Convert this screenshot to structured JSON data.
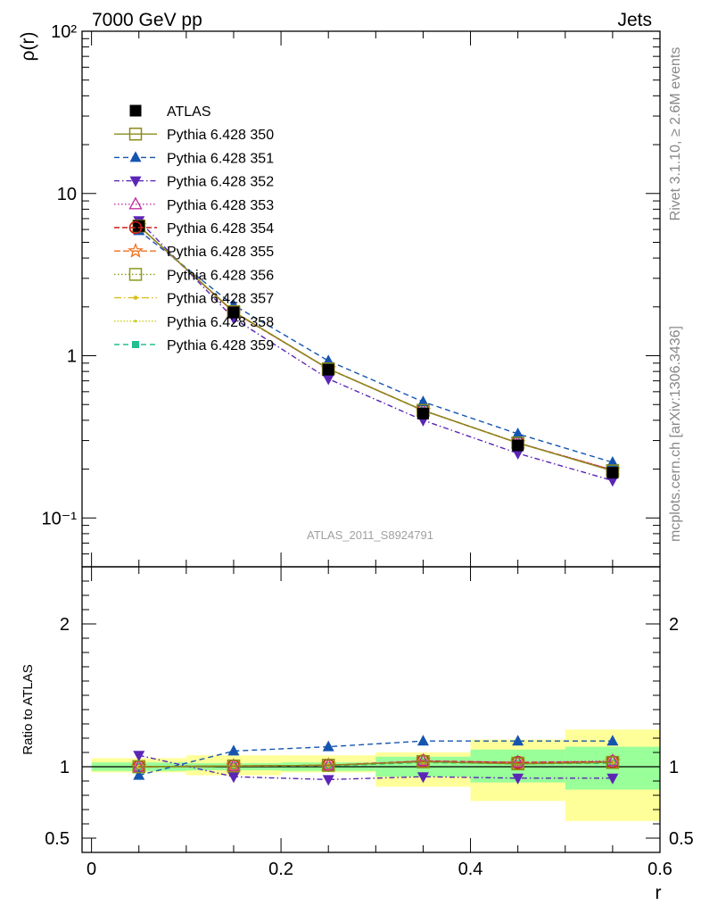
{
  "header": {
    "left_title": "7000 GeV pp",
    "right_title": "Jets"
  },
  "side_labels": {
    "rivet": "Rivet 3.1.10, ≥ 2.6M events",
    "mcplots": "mcplots.cern.ch [arXiv:1306.3436]"
  },
  "watermark": "ATLAS_2011_S8924791",
  "chart_data": [
    {
      "panel": "main",
      "type": "line",
      "ylabel": "ρ(r)",
      "yscale": "log",
      "ylim": [
        0.05,
        100
      ],
      "xlim": [
        -0.01,
        0.6
      ],
      "y_tick_labels": [
        "10⁻¹",
        "1",
        "10",
        "10²"
      ],
      "legend_placement": "upper-left",
      "x": [
        0.05,
        0.15,
        0.25,
        0.35,
        0.45,
        0.55
      ],
      "series": [
        {
          "name": "ATLAS",
          "color": "#000000",
          "marker": "square-filled",
          "dash": "none",
          "values": [
            6.3,
            1.85,
            0.82,
            0.44,
            0.28,
            0.19
          ]
        },
        {
          "name": "Pythia 6.428 350",
          "color": "#8b8b1a",
          "marker": "square-open",
          "dash": "solid",
          "values": [
            6.3,
            1.87,
            0.83,
            0.46,
            0.29,
            0.195
          ]
        },
        {
          "name": "Pythia 6.428 351",
          "color": "#1555b0",
          "marker": "triangle-up-filled",
          "dash": "6,4",
          "values": [
            5.9,
            2.05,
            0.93,
            0.52,
            0.33,
            0.22
          ]
        },
        {
          "name": "Pythia 6.428 352",
          "color": "#5b25b5",
          "marker": "triangle-down-filled",
          "dash": "6,3,1.5,3",
          "values": [
            6.8,
            1.7,
            0.72,
            0.4,
            0.25,
            0.17
          ]
        },
        {
          "name": "Pythia 6.428 353",
          "color": "#c030a0",
          "marker": "triangle-up-open",
          "dash": "1.5,2.5",
          "values": [
            6.3,
            1.86,
            0.83,
            0.46,
            0.29,
            0.198
          ]
        },
        {
          "name": "Pythia 6.428 354",
          "color": "#d01a1a",
          "marker": "circle-open",
          "dash": "6,3",
          "values": [
            6.3,
            1.86,
            0.83,
            0.46,
            0.29,
            0.197
          ]
        },
        {
          "name": "Pythia 6.428 355",
          "color": "#f07020",
          "marker": "star-open",
          "dash": "7,3",
          "values": [
            6.3,
            1.86,
            0.83,
            0.46,
            0.29,
            0.197
          ]
        },
        {
          "name": "Pythia 6.428 356",
          "color": "#8a9a1a",
          "marker": "square-open",
          "dash": "1.5,2.5",
          "values": [
            6.3,
            1.86,
            0.83,
            0.46,
            0.29,
            0.196
          ]
        },
        {
          "name": "Pythia 6.428 357",
          "color": "#d8c020",
          "marker": "dot",
          "dash": "8,3,1.5,3",
          "values": [
            6.3,
            1.86,
            0.83,
            0.46,
            0.29,
            0.196
          ]
        },
        {
          "name": "Pythia 6.428 358",
          "color": "#c8d020",
          "marker": "dot-small",
          "dash": "1.5,2",
          "values": [
            6.3,
            1.86,
            0.83,
            0.46,
            0.29,
            0.196
          ]
        },
        {
          "name": "Pythia 6.428 359",
          "color": "#20c090",
          "marker": "square-filled-small",
          "dash": "6,4",
          "values": [
            6.3,
            1.86,
            0.83,
            0.46,
            0.29,
            0.196
          ]
        }
      ]
    },
    {
      "panel": "ratio",
      "type": "line",
      "ylabel": "Ratio to ATLAS",
      "xlabel": "r",
      "ylim": [
        0.4,
        2.4
      ],
      "xlim": [
        -0.01,
        0.6
      ],
      "y_ticks": [
        0.5,
        1,
        2
      ],
      "y_tick_labels": [
        "0.5",
        "1",
        "2"
      ],
      "x_ticks": [
        0,
        0.2,
        0.4,
        0.6
      ],
      "x_tick_labels": [
        "0",
        "0.2",
        "0.4",
        "0.6"
      ],
      "bands": [
        {
          "x": [
            0.0,
            0.1
          ],
          "inner": [
            0.97,
            1.03
          ],
          "outer": [
            0.96,
            1.06
          ]
        },
        {
          "x": [
            0.1,
            0.2
          ],
          "inner": [
            0.975,
            1.025
          ],
          "outer": [
            0.94,
            1.08
          ]
        },
        {
          "x": [
            0.2,
            0.3
          ],
          "inner": [
            0.97,
            1.03
          ],
          "outer": [
            0.96,
            1.08
          ]
        },
        {
          "x": [
            0.3,
            0.4
          ],
          "inner": [
            0.93,
            1.07
          ],
          "outer": [
            0.86,
            1.1
          ]
        },
        {
          "x": [
            0.4,
            0.5
          ],
          "inner": [
            0.89,
            1.12
          ],
          "outer": [
            0.76,
            1.19
          ]
        },
        {
          "x": [
            0.5,
            0.6
          ],
          "inner": [
            0.84,
            1.14
          ],
          "outer": [
            0.62,
            1.26
          ]
        }
      ],
      "x": [
        0.05,
        0.15,
        0.25,
        0.35,
        0.45,
        0.55
      ],
      "series": [
        {
          "name": "Pythia 6.428 350",
          "color": "#8b8b1a",
          "marker": "square-open",
          "dash": "solid",
          "values": [
            1.0,
            1.005,
            1.01,
            1.035,
            1.02,
            1.03
          ]
        },
        {
          "name": "Pythia 6.428 351",
          "color": "#1555b0",
          "marker": "triangle-up-filled",
          "dash": "6,4",
          "values": [
            0.94,
            1.11,
            1.14,
            1.18,
            1.18,
            1.18
          ]
        },
        {
          "name": "Pythia 6.428 352",
          "color": "#5b25b5",
          "marker": "triangle-down-filled",
          "dash": "6,3,1.5,3",
          "values": [
            1.08,
            0.93,
            0.91,
            0.93,
            0.92,
            0.92
          ]
        },
        {
          "name": "Pythia 6.428 353",
          "color": "#c030a0",
          "marker": "triangle-up-open",
          "dash": "1.5,2.5",
          "values": [
            1.0,
            1.005,
            1.01,
            1.04,
            1.03,
            1.04
          ]
        },
        {
          "name": "Pythia 6.428 354",
          "color": "#d01a1a",
          "marker": "circle-open",
          "dash": "6,3",
          "values": [
            1.0,
            1.005,
            1.01,
            1.04,
            1.03,
            1.035
          ]
        },
        {
          "name": "Pythia 6.428 355",
          "color": "#f07020",
          "marker": "star-open",
          "dash": "7,3",
          "values": [
            1.0,
            1.005,
            1.01,
            1.04,
            1.03,
            1.035
          ]
        },
        {
          "name": "Pythia 6.428 356",
          "color": "#8a9a1a",
          "marker": "square-open",
          "dash": "1.5,2.5",
          "values": [
            1.0,
            1.005,
            1.01,
            1.035,
            1.025,
            1.03
          ]
        },
        {
          "name": "Pythia 6.428 357",
          "color": "#d8c020",
          "marker": "dot",
          "dash": "8,3,1.5,3",
          "values": [
            1.0,
            1.005,
            1.01,
            1.035,
            1.025,
            1.03
          ]
        },
        {
          "name": "Pythia 6.428 358",
          "color": "#c8d020",
          "marker": "dot-small",
          "dash": "1.5,2",
          "values": [
            1.0,
            1.005,
            1.01,
            1.035,
            1.025,
            1.03
          ]
        },
        {
          "name": "Pythia 6.428 359",
          "color": "#20c090",
          "marker": "square-filled-small",
          "dash": "6,4",
          "values": [
            1.0,
            1.005,
            1.005,
            1.03,
            1.02,
            1.025
          ]
        }
      ]
    }
  ]
}
